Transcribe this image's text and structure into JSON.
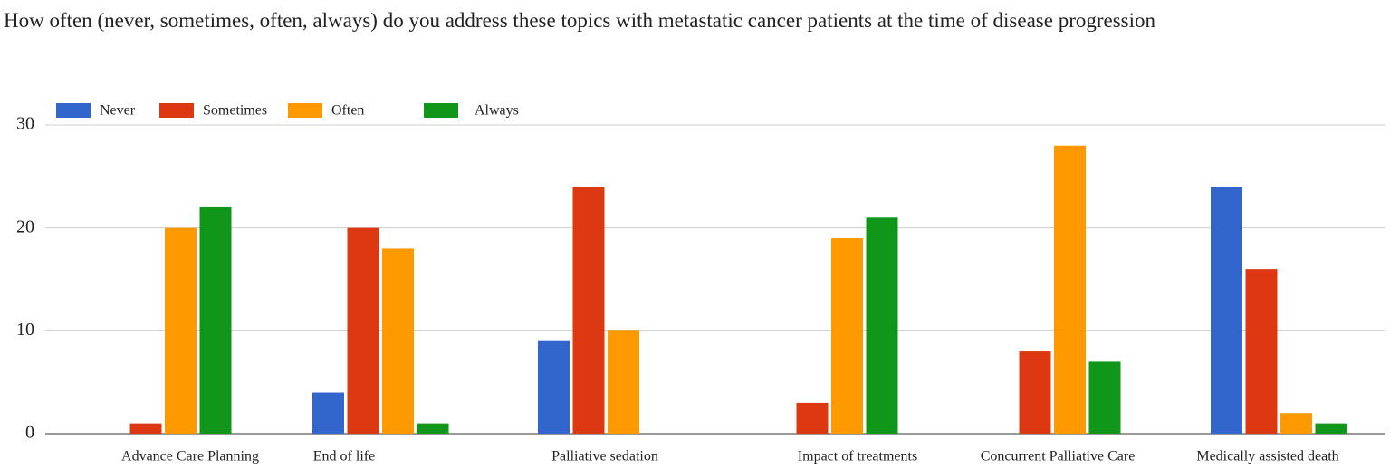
{
  "chart_data": {
    "type": "bar",
    "title": "How often (never, sometimes, often, always) do you address these topics with metastatic cancer patients at the time of disease progression",
    "categories": [
      "Advance Care Planning",
      "End of life",
      "Palliative sedation",
      "Impact of treatments",
      "Concurrent Palliative Care",
      "Medically assisted death"
    ],
    "series": [
      {
        "name": "Never",
        "color": "#3366cc",
        "values": [
          0,
          4,
          9,
          0,
          0,
          24
        ]
      },
      {
        "name": "Sometimes",
        "color": "#dc3912",
        "values": [
          1,
          20,
          24,
          3,
          8,
          16
        ]
      },
      {
        "name": "Often",
        "color": "#ff9900",
        "values": [
          20,
          18,
          10,
          19,
          28,
          2
        ]
      },
      {
        "name": "Always",
        "color": "#109618",
        "values": [
          22,
          1,
          0,
          21,
          7,
          1
        ]
      }
    ],
    "ylim": [
      0,
      30
    ],
    "yticks": [
      0,
      10,
      20,
      30
    ],
    "grid": true,
    "legend": "top-left"
  }
}
